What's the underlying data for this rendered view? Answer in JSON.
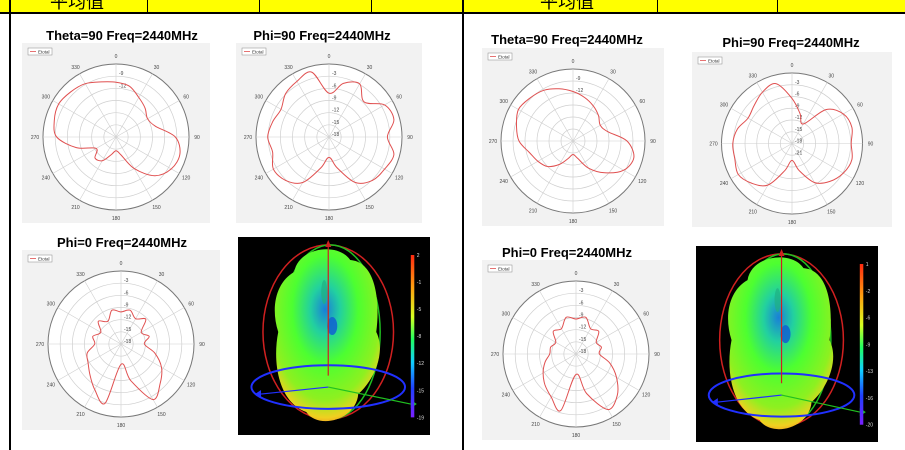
{
  "header": {
    "left_label": "平均值",
    "right_label": "平均值"
  },
  "colors": {
    "header_band": "#ffff00",
    "trace": "#e05050",
    "grid": "#cfcfcf"
  },
  "chart_data": [
    {
      "id": "L-theta90",
      "type": "polar",
      "title": "Theta=90 Freq=2440MHz",
      "legend": "Etotal",
      "legend_position": "top-left",
      "angle_ticks": [
        "0",
        "30",
        "60",
        "90",
        "120",
        "150",
        "180",
        "210",
        "240",
        "270",
        "300",
        "330"
      ],
      "radial_ticks": [
        "-9",
        "-12"
      ],
      "r_range": [
        -21,
        -5
      ],
      "trace_angles": [
        0,
        15,
        30,
        45,
        60,
        75,
        90,
        105,
        120,
        135,
        150,
        165,
        180,
        195,
        210,
        225,
        240,
        255,
        270,
        285,
        300,
        315,
        330,
        345
      ],
      "trace_values": [
        -9,
        -9.5,
        -11,
        -12,
        -13,
        -12,
        -8,
        -6.5,
        -7,
        -9,
        -13,
        -17,
        -18,
        -17,
        -15,
        -14.5,
        -16,
        -12,
        -8,
        -7,
        -6.5,
        -7,
        -7.5,
        -8.5
      ]
    },
    {
      "id": "L-phi90",
      "type": "polar",
      "title": "Phi=90 Freq=2440MHz",
      "legend": "Etotal",
      "legend_position": "top-left",
      "angle_ticks": [
        "0",
        "30",
        "60",
        "90",
        "120",
        "150",
        "180",
        "210",
        "240",
        "270",
        "300",
        "330"
      ],
      "radial_ticks": [
        "-3",
        "-6",
        "-9",
        "-12",
        "-15",
        "-18"
      ],
      "r_range": [
        -25,
        0
      ],
      "trace_angles": [
        0,
        15,
        30,
        45,
        60,
        75,
        90,
        105,
        120,
        135,
        150,
        165,
        180,
        195,
        210,
        225,
        240,
        255,
        270,
        285,
        300,
        315,
        330,
        345
      ],
      "trace_values": [
        -10,
        -6,
        -4,
        -8,
        -3,
        -2,
        -5,
        -2,
        -3,
        -4,
        -7,
        -14,
        -18,
        -14,
        -7,
        -4,
        -3,
        -5,
        -4,
        -5,
        -6,
        -4,
        -3,
        -2
      ]
    },
    {
      "id": "L-phi0",
      "type": "polar",
      "title": "Phi=0 Freq=2440MHz",
      "legend": "Etotal",
      "legend_position": "top-left",
      "angle_ticks": [
        "0",
        "30",
        "60",
        "90",
        "120",
        "150",
        "180",
        "210",
        "240",
        "270",
        "300",
        "330"
      ],
      "radial_ticks": [
        "-3",
        "-6",
        "-9",
        "-12",
        "-15",
        "-18"
      ],
      "r_range": [
        -25,
        0
      ],
      "trace_angles": [
        0,
        15,
        30,
        45,
        60,
        75,
        90,
        105,
        120,
        135,
        150,
        165,
        180,
        195,
        210,
        225,
        240,
        255,
        270,
        285,
        300,
        315,
        330,
        345
      ],
      "trace_values": [
        -14,
        -13,
        -15,
        -13,
        -17,
        -15,
        -17,
        -13,
        -9,
        -6,
        -3,
        -12,
        -18,
        -4,
        -7,
        -10,
        -12,
        -13,
        -16,
        -15,
        -17,
        -14,
        -16,
        -13
      ]
    },
    {
      "id": "R-theta90",
      "type": "polar",
      "title": "Theta=90 Freq=2440MHz",
      "legend": "Etotal",
      "legend_position": "top-left",
      "angle_ticks": [
        "0",
        "30",
        "60",
        "90",
        "120",
        "150",
        "180",
        "210",
        "240",
        "270",
        "300",
        "330"
      ],
      "radial_ticks": [
        "-9",
        "-12"
      ],
      "r_range": [
        -21,
        -5
      ],
      "trace_angles": [
        0,
        15,
        30,
        45,
        60,
        75,
        90,
        105,
        120,
        135,
        150,
        165,
        180,
        195,
        210,
        225,
        240,
        255,
        270,
        285,
        300,
        315,
        330,
        345
      ],
      "trace_values": [
        -10,
        -11,
        -12,
        -13,
        -14,
        -13,
        -9,
        -7,
        -8,
        -11,
        -14,
        -17,
        -18,
        -17,
        -15,
        -13,
        -12,
        -11,
        -9,
        -8,
        -7,
        -7.5,
        -8,
        -9
      ]
    },
    {
      "id": "R-phi90",
      "type": "polar",
      "title": "Phi=90 Freq=2440MHz",
      "legend": "Etotal",
      "legend_position": "top-left",
      "angle_ticks": [
        "0",
        "30",
        "60",
        "90",
        "120",
        "150",
        "180",
        "210",
        "240",
        "270",
        "300",
        "330"
      ],
      "radial_ticks": [
        "-3",
        "-6",
        "-9",
        "-12",
        "-15",
        "-18",
        "-21"
      ],
      "r_range": [
        -25,
        0
      ],
      "trace_angles": [
        0,
        15,
        30,
        45,
        60,
        75,
        90,
        105,
        120,
        135,
        150,
        165,
        180,
        195,
        210,
        225,
        240,
        255,
        270,
        285,
        300,
        315,
        330,
        345
      ],
      "trace_values": [
        -9,
        -14,
        -17,
        -8,
        -4,
        -3,
        -4,
        -3,
        -4,
        -6,
        -9,
        -15,
        -19,
        -15,
        -8,
        -5,
        -3,
        -4,
        -4,
        -5,
        -7,
        -6,
        -4,
        -3
      ]
    },
    {
      "id": "R-phi0",
      "type": "polar",
      "title": "Phi=0 Freq=2440MHz",
      "legend": "Etotal",
      "legend_position": "top-left",
      "angle_ticks": [
        "0",
        "30",
        "60",
        "90",
        "120",
        "150",
        "180",
        "210",
        "240",
        "270",
        "300",
        "330"
      ],
      "radial_ticks": [
        "-3",
        "-6",
        "-9",
        "-12",
        "-15",
        "-18"
      ],
      "r_range": [
        -25,
        0
      ],
      "trace_angles": [
        0,
        15,
        30,
        45,
        60,
        75,
        90,
        105,
        120,
        135,
        150,
        165,
        180,
        195,
        210,
        225,
        240,
        255,
        270,
        285,
        300,
        315,
        330,
        345
      ],
      "trace_values": [
        -13,
        -12,
        -15,
        -14,
        -17,
        -16,
        -17,
        -13,
        -9,
        -5,
        -3,
        -11,
        -18,
        -5,
        -8,
        -10,
        -12,
        -14,
        -16,
        -16,
        -17,
        -14,
        -15,
        -12
      ]
    },
    {
      "id": "L-3d",
      "type": "heatmap",
      "colorbar_ticks": [
        "2",
        "-1",
        "-5",
        "-8",
        "-12",
        "-15",
        "-19"
      ]
    },
    {
      "id": "R-3d",
      "type": "heatmap",
      "colorbar_ticks": [
        "1",
        "-2",
        "-6",
        "-9",
        "-13",
        "-16",
        "-20"
      ]
    }
  ]
}
